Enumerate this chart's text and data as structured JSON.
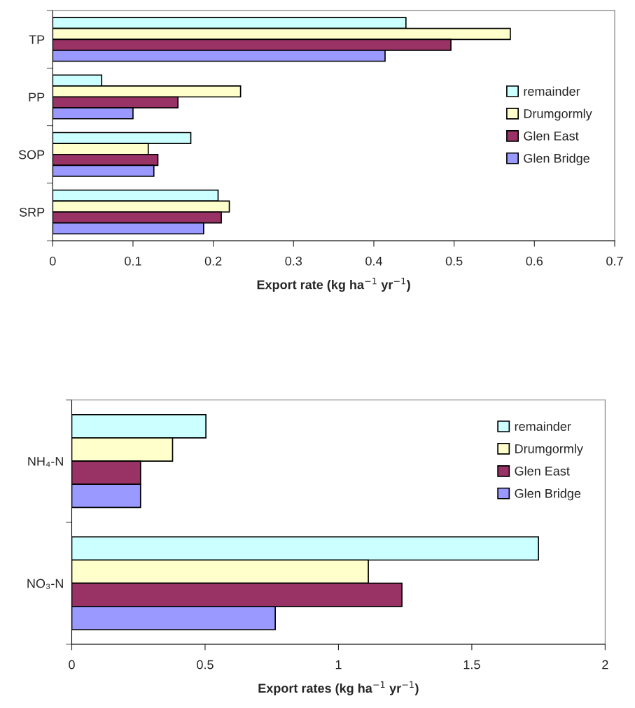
{
  "chart_data": [
    {
      "type": "bar",
      "orientation": "horizontal",
      "categories": [
        "TP",
        "PP",
        "SOP",
        "SRP"
      ],
      "xlabel": "Export rate (kg ha$^{−1}$ yr$^{−1}$)",
      "xlim": [
        0,
        0.7
      ],
      "xticks": [
        0,
        0.1,
        0.2,
        0.3,
        0.4,
        0.5,
        0.6,
        0.7
      ],
      "legend": "right",
      "grid": false,
      "series": [
        {
          "name": "remainder",
          "color": "#ccffff",
          "values": [
            0.44,
            0.061,
            0.172,
            0.206
          ]
        },
        {
          "name": "Drumgormly",
          "color": "#ffffcc",
          "values": [
            0.57,
            0.234,
            0.119,
            0.22
          ]
        },
        {
          "name": "Glen East",
          "color": "#993366",
          "values": [
            0.496,
            0.156,
            0.131,
            0.21
          ]
        },
        {
          "name": "Glen Bridge",
          "color": "#9999ff",
          "values": [
            0.414,
            0.1,
            0.126,
            0.188
          ]
        }
      ]
    },
    {
      "type": "bar",
      "orientation": "horizontal",
      "categories": [
        "NH₄-N",
        "NO₃-N"
      ],
      "xlabel": "Export rates (kg ha$^{−1}$ yr$^{−1}$)",
      "xlim": [
        0,
        2
      ],
      "xticks": [
        0,
        0.5,
        1,
        1.5,
        2
      ],
      "legend": "top right",
      "grid": false,
      "series": [
        {
          "name": "remainder",
          "color": "#ccffff",
          "values": [
            0.503,
            1.75
          ]
        },
        {
          "name": "Drumgormly",
          "color": "#ffffcc",
          "values": [
            0.378,
            1.112
          ]
        },
        {
          "name": "Glen East",
          "color": "#993366",
          "values": [
            0.258,
            1.238
          ]
        },
        {
          "name": "Glen Bridge",
          "color": "#9999ff",
          "values": [
            0.258,
            0.763
          ]
        }
      ]
    }
  ]
}
